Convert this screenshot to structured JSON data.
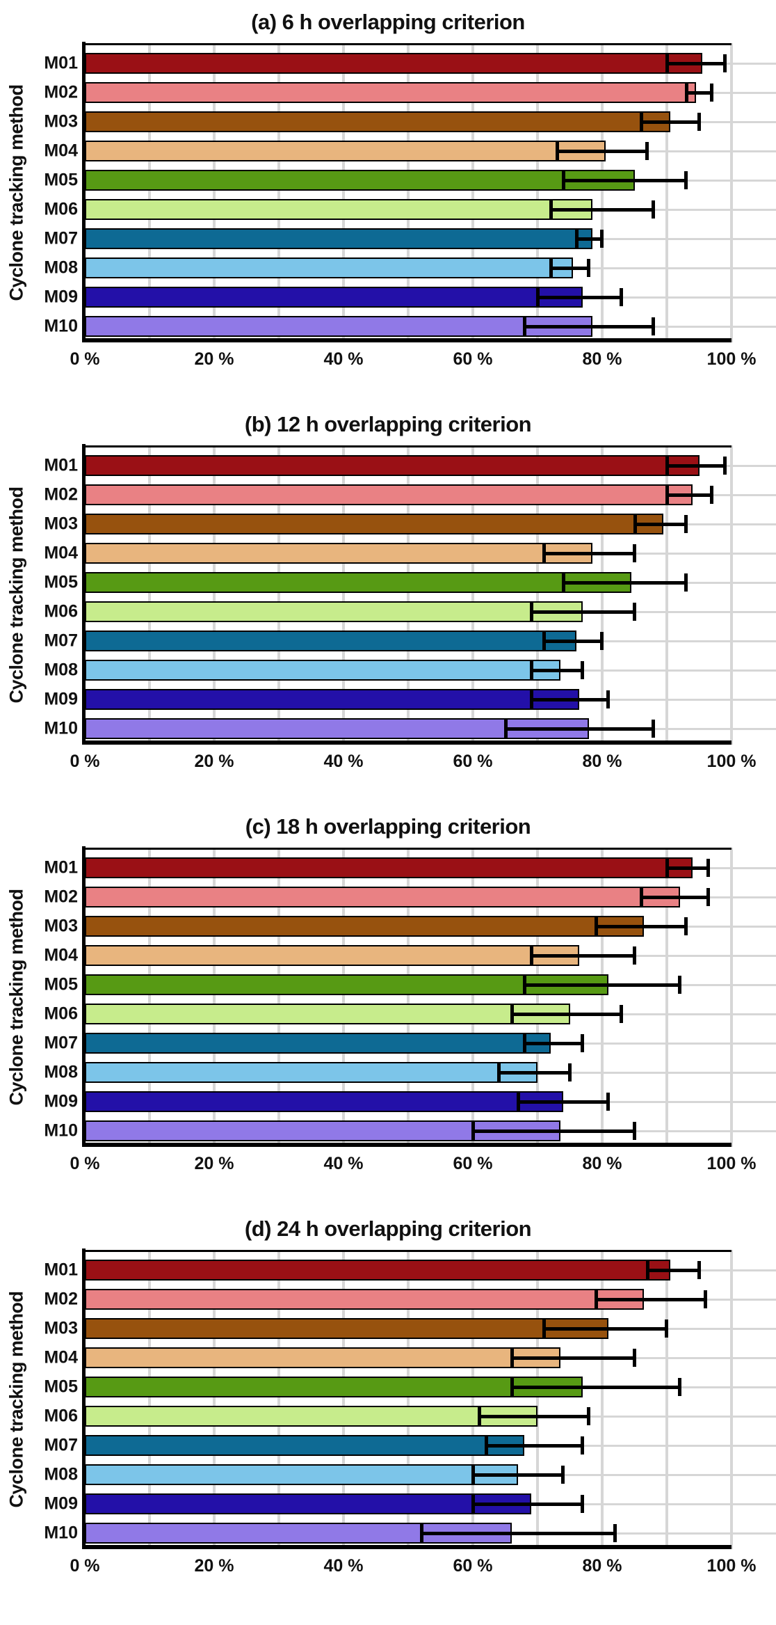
{
  "figure": {
    "ylabel": "Cyclone tracking method",
    "x_axis_unit": "%",
    "background": "#ffffff"
  },
  "style": {
    "bar_colors": [
      "#9A1015",
      "#E98184",
      "#97520E",
      "#E8B57E",
      "#579A14",
      "#C7EC8C",
      "#0E6A94",
      "#7CC5E9",
      "#2310A8",
      "#9079E7"
    ],
    "bar_edge_color": "#000000",
    "error_color": "#000000",
    "grid_color": "#d6d6d6",
    "spine_color": "#000000"
  },
  "chart_data": [
    {
      "type": "bar",
      "orientation": "horizontal",
      "title": "(a) 6 h  overlapping criterion",
      "ylabel": "Cyclone tracking method",
      "categories": [
        "M01",
        "M02",
        "M03",
        "M04",
        "M05",
        "M06",
        "M07",
        "M08",
        "M09",
        "M10"
      ],
      "values": [
        95.5,
        94.5,
        90.5,
        80.5,
        85,
        78.5,
        78.5,
        75.5,
        77,
        78.5
      ],
      "error_low": [
        90,
        93,
        86,
        73,
        74,
        72,
        76,
        72,
        70,
        68
      ],
      "error_high": [
        99,
        97,
        95,
        87,
        93,
        88,
        80,
        78,
        83,
        88
      ],
      "xlim": [
        0,
        106
      ],
      "x_tick_values": [
        0,
        20,
        40,
        60,
        80,
        100
      ],
      "x_tick_labels": [
        "0 %",
        "20 %",
        "40 %",
        "60 %",
        "80 %",
        "100 %"
      ],
      "grid": "both"
    },
    {
      "type": "bar",
      "orientation": "horizontal",
      "title": "(b) 12 h  overlapping criterion",
      "ylabel": "Cyclone tracking method",
      "categories": [
        "M01",
        "M02",
        "M03",
        "M04",
        "M05",
        "M06",
        "M07",
        "M08",
        "M09",
        "M10"
      ],
      "values": [
        95,
        94,
        89.5,
        78.5,
        84.5,
        77,
        76,
        73.5,
        76.5,
        78
      ],
      "error_low": [
        90,
        90,
        85,
        71,
        74,
        69,
        71,
        69,
        69,
        65
      ],
      "error_high": [
        99,
        97,
        93,
        85,
        93,
        85,
        80,
        77,
        81,
        88
      ],
      "xlim": [
        0,
        106
      ],
      "x_tick_values": [
        0,
        20,
        40,
        60,
        80,
        100
      ],
      "x_tick_labels": [
        "0 %",
        "20 %",
        "40 %",
        "60 %",
        "80 %",
        "100 %"
      ],
      "grid": "both"
    },
    {
      "type": "bar",
      "orientation": "horizontal",
      "title": "(c) 18 h  overlapping criterion",
      "ylabel": "Cyclone tracking method",
      "categories": [
        "M01",
        "M02",
        "M03",
        "M04",
        "M05",
        "M06",
        "M07",
        "M08",
        "M09",
        "M10"
      ],
      "values": [
        94,
        92,
        86.5,
        76.5,
        81,
        75,
        72,
        70,
        74,
        73.5
      ],
      "error_low": [
        90,
        86,
        79,
        69,
        68,
        66,
        68,
        64,
        67,
        60
      ],
      "error_high": [
        96.5,
        96.5,
        93,
        85,
        92,
        83,
        77,
        75,
        81,
        85
      ],
      "xlim": [
        0,
        106
      ],
      "x_tick_values": [
        0,
        20,
        40,
        60,
        80,
        100
      ],
      "x_tick_labels": [
        "0 %",
        "20 %",
        "40 %",
        "60 %",
        "80 %",
        "100 %"
      ],
      "grid": "both"
    },
    {
      "type": "bar",
      "orientation": "horizontal",
      "title": "(d) 24 h  overlapping criterion",
      "ylabel": "Cyclone tracking method",
      "categories": [
        "M01",
        "M02",
        "M03",
        "M04",
        "M05",
        "M06",
        "M07",
        "M08",
        "M09",
        "M10"
      ],
      "values": [
        90.5,
        86.5,
        81,
        73.5,
        77,
        70,
        68,
        67,
        69,
        66
      ],
      "error_low": [
        87,
        79,
        71,
        66,
        66,
        61,
        62,
        60,
        60,
        52
      ],
      "error_high": [
        95,
        96,
        90,
        85,
        92,
        78,
        77,
        74,
        77,
        82
      ],
      "xlim": [
        0,
        106
      ],
      "x_tick_values": [
        0,
        20,
        40,
        60,
        80,
        100
      ],
      "x_tick_labels": [
        "0 %",
        "20 %",
        "40 %",
        "60 %",
        "80 %",
        "100 %"
      ],
      "grid": "both"
    }
  ]
}
